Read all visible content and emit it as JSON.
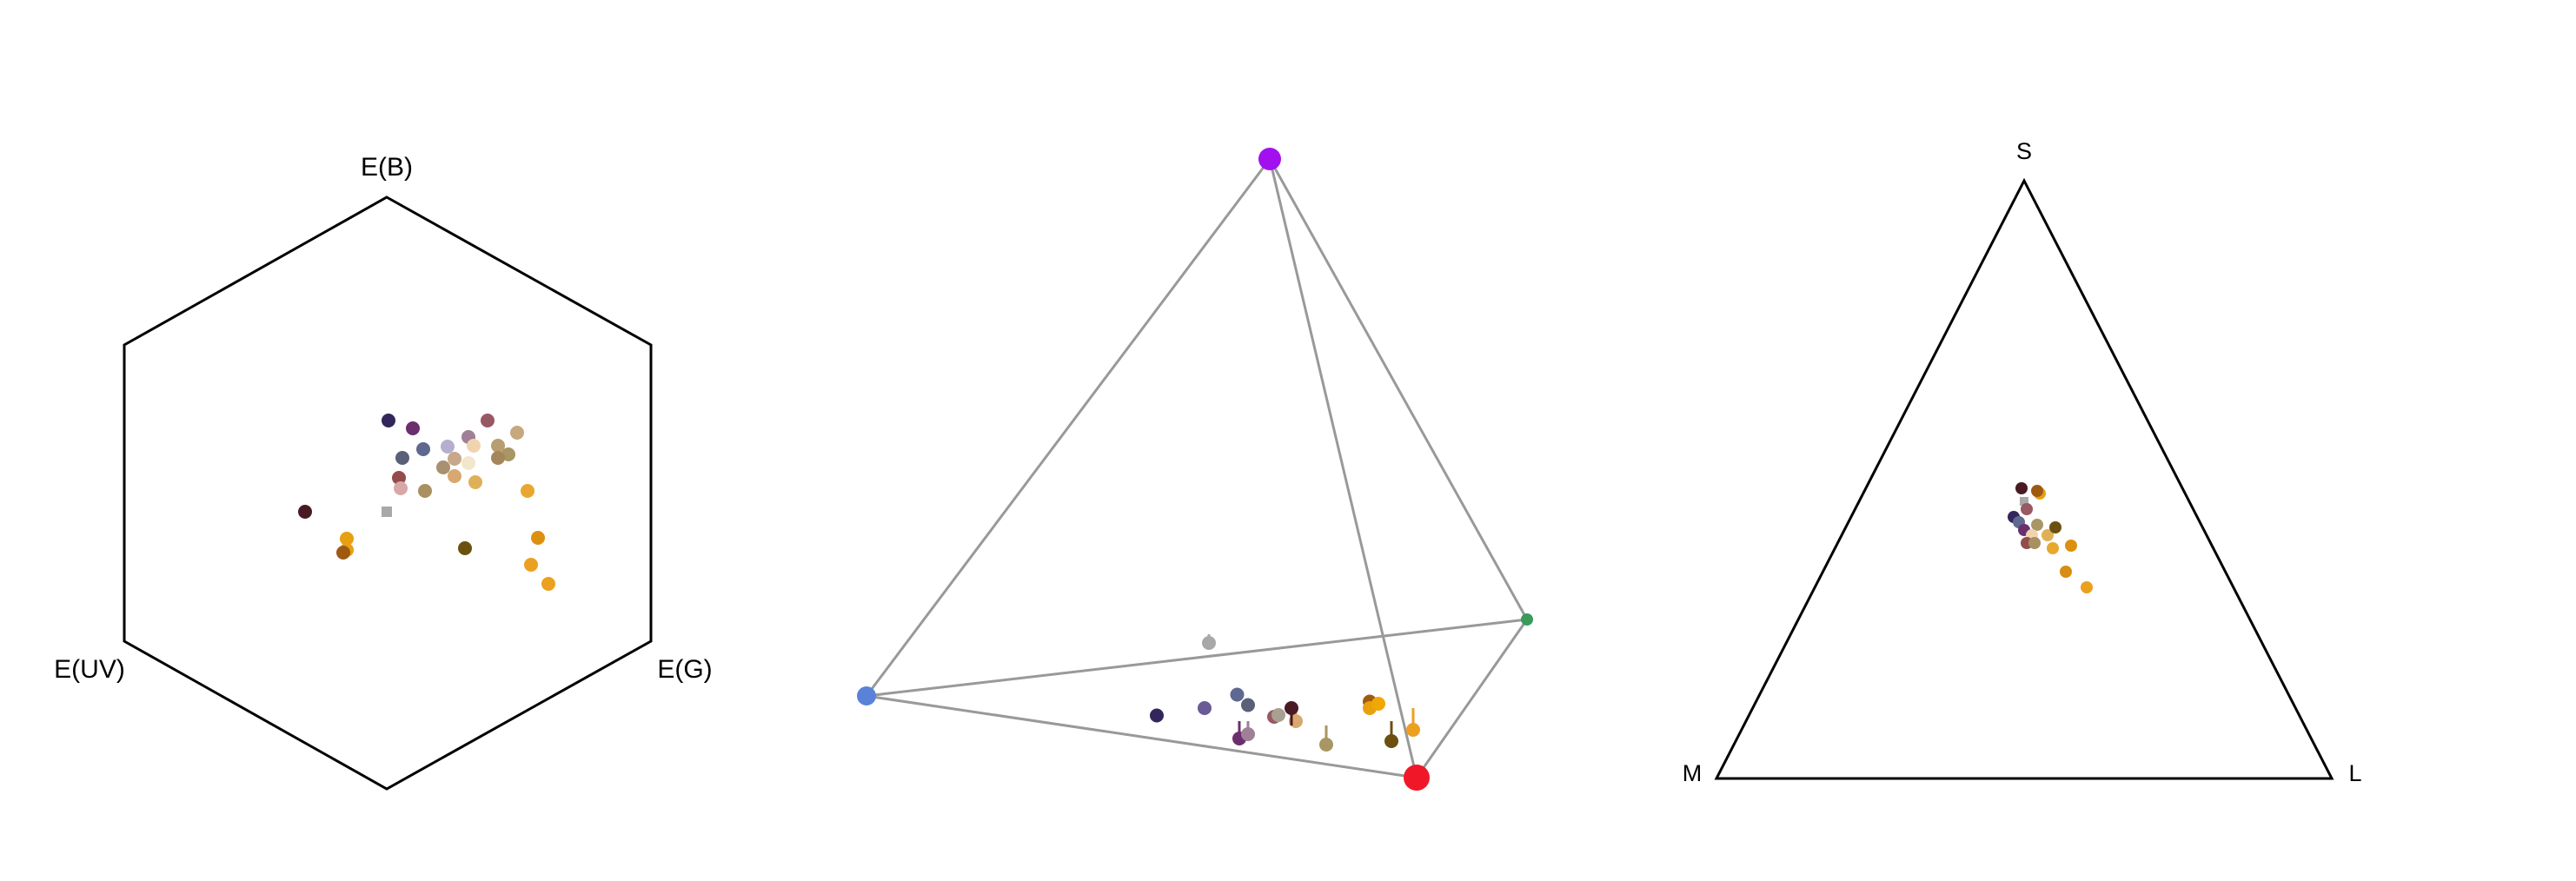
{
  "chart_data": [
    {
      "type": "scatter",
      "subtype": "hexagon-color-space",
      "axis_labels": {
        "top": "E(B)",
        "left": "E(UV)",
        "right": "E(G)"
      },
      "points": [
        {
          "x": 0.02,
          "y": 0.83,
          "color": "#33265c",
          "shape": "circle"
        },
        {
          "x": 0.3,
          "y": 0.74,
          "color": "#6c2f6e",
          "shape": "circle"
        },
        {
          "x": 0.7,
          "y": 0.53,
          "color": "#b6aed0",
          "shape": "circle"
        },
        {
          "x": 0.42,
          "y": 0.5,
          "color": "#5e6890",
          "shape": "circle"
        },
        {
          "x": 1.16,
          "y": 0.83,
          "color": "#985864",
          "shape": "circle"
        },
        {
          "x": 0.94,
          "y": 0.64,
          "color": "#a08097",
          "shape": "circle"
        },
        {
          "x": 1.5,
          "y": 0.69,
          "color": "#c6a87c",
          "shape": "circle"
        },
        {
          "x": 1.28,
          "y": 0.54,
          "color": "#b79e70",
          "shape": "circle"
        },
        {
          "x": 1.0,
          "y": 0.54,
          "color": "#f0d4b0",
          "shape": "circle"
        },
        {
          "x": 1.4,
          "y": 0.44,
          "color": "#a89664",
          "shape": "circle"
        },
        {
          "x": 1.28,
          "y": 0.4,
          "color": "#a4865a",
          "shape": "circle"
        },
        {
          "x": 0.78,
          "y": 0.39,
          "color": "#c8a888",
          "shape": "circle"
        },
        {
          "x": 0.65,
          "y": 0.29,
          "color": "#a89070",
          "shape": "circle"
        },
        {
          "x": 0.94,
          "y": 0.34,
          "color": "#f2e6cc",
          "shape": "circle"
        },
        {
          "x": 0.18,
          "y": 0.4,
          "color": "#5a6078",
          "shape": "circle"
        },
        {
          "x": 0.78,
          "y": 0.19,
          "color": "#d8a870",
          "shape": "circle"
        },
        {
          "x": 0.14,
          "y": 0.17,
          "color": "#934c4e",
          "shape": "circle"
        },
        {
          "x": 0.16,
          "y": 0.05,
          "color": "#d8a8a8",
          "shape": "circle"
        },
        {
          "x": 1.02,
          "y": 0.12,
          "color": "#e0b058",
          "shape": "circle"
        },
        {
          "x": 0.44,
          "y": 0.02,
          "color": "#a89060",
          "shape": "circle"
        },
        {
          "x": 1.62,
          "y": 0.02,
          "color": "#e8a830",
          "shape": "circle"
        },
        {
          "x": -0.94,
          "y": -0.22,
          "color": "#4a1a24",
          "shape": "circle"
        },
        {
          "x": 0.0,
          "y": -0.22,
          "color": "#a8a8a8",
          "shape": "square"
        },
        {
          "x": 1.74,
          "y": -0.52,
          "color": "#dc9010",
          "shape": "circle"
        },
        {
          "x": -0.46,
          "y": -0.53,
          "color": "#e8a010",
          "shape": "circle"
        },
        {
          "x": -0.46,
          "y": -0.66,
          "color": "#e8a010",
          "shape": "circle"
        },
        {
          "x": -0.5,
          "y": -0.69,
          "color": "#9e5a10",
          "shape": "circle"
        },
        {
          "x": 0.9,
          "y": -0.64,
          "color": "#6c5010",
          "shape": "circle"
        },
        {
          "x": 1.66,
          "y": -0.83,
          "color": "#eca020",
          "shape": "circle"
        },
        {
          "x": 1.86,
          "y": -1.05,
          "color": "#eca020",
          "shape": "circle"
        }
      ]
    },
    {
      "type": "scatter",
      "subtype": "tetrahedral-color-space",
      "vertex_colors": {
        "uv": "#a310f0",
        "s": "#5a82d8",
        "m": "#3a9a5a",
        "l": "#f01828",
        "edge": "#999999"
      },
      "points": [
        {
          "x": -0.28,
          "y": -0.22,
          "z": 0.2,
          "color": "#a8a8a8"
        },
        {
          "x": -0.52,
          "y": 0.17,
          "z": 0.34,
          "color": "#33265c"
        },
        {
          "x": -0.3,
          "y": 0.12,
          "z": 0.3,
          "color": "#6c5a96"
        },
        {
          "x": -0.15,
          "y": 0.05,
          "z": 0.28,
          "color": "#5e6890"
        },
        {
          "x": -0.1,
          "y": 0.09,
          "z": 0.26,
          "color": "#5a6078"
        },
        {
          "x": -0.14,
          "y": 0.18,
          "z": 0.1,
          "color": "#6c2f6e"
        },
        {
          "x": -0.1,
          "y": 0.18,
          "z": 0.15,
          "color": "#a08097"
        },
        {
          "x": 0.02,
          "y": 0.14,
          "z": 0.25,
          "color": "#985864"
        },
        {
          "x": 0.04,
          "y": 0.12,
          "z": 0.22,
          "color": "#a8a090"
        },
        {
          "x": 0.12,
          "y": 0.14,
          "z": 0.2,
          "color": "#d8a870"
        },
        {
          "x": 0.26,
          "y": 0.2,
          "z": 0.08,
          "color": "#a89664"
        },
        {
          "x": 0.1,
          "y": 0.2,
          "z": 0.5,
          "color": "#4a1a24"
        },
        {
          "x": 0.46,
          "y": 0.11,
          "z": 0.35,
          "color": "#9e5a10"
        },
        {
          "x": 0.46,
          "y": 0.14,
          "z": 0.35,
          "color": "#e8a010"
        },
        {
          "x": 0.5,
          "y": 0.1,
          "z": 0.3,
          "color": "#f0a800"
        },
        {
          "x": 0.56,
          "y": 0.18,
          "z": 0.07,
          "color": "#6c5010"
        },
        {
          "x": 0.66,
          "y": 0.12,
          "z": 0.05,
          "color": "#eca020"
        }
      ]
    },
    {
      "type": "scatter",
      "subtype": "trichromatic-triangle",
      "vertex_labels": {
        "top": "S",
        "left": "M",
        "right": "L"
      },
      "points": [
        {
          "x": -0.01,
          "y": 0.35,
          "color": "#4a1a24",
          "shape": "circle"
        },
        {
          "x": 0.06,
          "y": 0.33,
          "color": "#e8a010",
          "shape": "circle"
        },
        {
          "x": 0.05,
          "y": 0.34,
          "color": "#9e5a10",
          "shape": "circle"
        },
        {
          "x": 0.0,
          "y": 0.3,
          "color": "#a8a8a8",
          "shape": "square"
        },
        {
          "x": 0.01,
          "y": 0.27,
          "color": "#985864",
          "shape": "circle"
        },
        {
          "x": -0.04,
          "y": 0.24,
          "color": "#33265c",
          "shape": "circle"
        },
        {
          "x": -0.02,
          "y": 0.22,
          "color": "#5e6890",
          "shape": "circle"
        },
        {
          "x": 0.05,
          "y": 0.21,
          "color": "#a89664",
          "shape": "circle"
        },
        {
          "x": 0.0,
          "y": 0.19,
          "color": "#6c2f6e",
          "shape": "circle"
        },
        {
          "x": 0.09,
          "y": 0.17,
          "color": "#e0b058",
          "shape": "circle"
        },
        {
          "x": 0.03,
          "y": 0.17,
          "color": "#f0d4b0",
          "shape": "circle"
        },
        {
          "x": 0.12,
          "y": 0.2,
          "color": "#6c5010",
          "shape": "circle"
        },
        {
          "x": 0.01,
          "y": 0.14,
          "color": "#934c4e",
          "shape": "circle"
        },
        {
          "x": 0.04,
          "y": 0.14,
          "color": "#a89060",
          "shape": "circle"
        },
        {
          "x": 0.11,
          "y": 0.12,
          "color": "#e8a830",
          "shape": "circle"
        },
        {
          "x": 0.18,
          "y": 0.13,
          "color": "#dc9010",
          "shape": "circle"
        },
        {
          "x": 0.16,
          "y": 0.03,
          "color": "#d88c10",
          "shape": "circle"
        },
        {
          "x": 0.24,
          "y": -0.03,
          "color": "#eca020",
          "shape": "circle"
        }
      ]
    }
  ]
}
